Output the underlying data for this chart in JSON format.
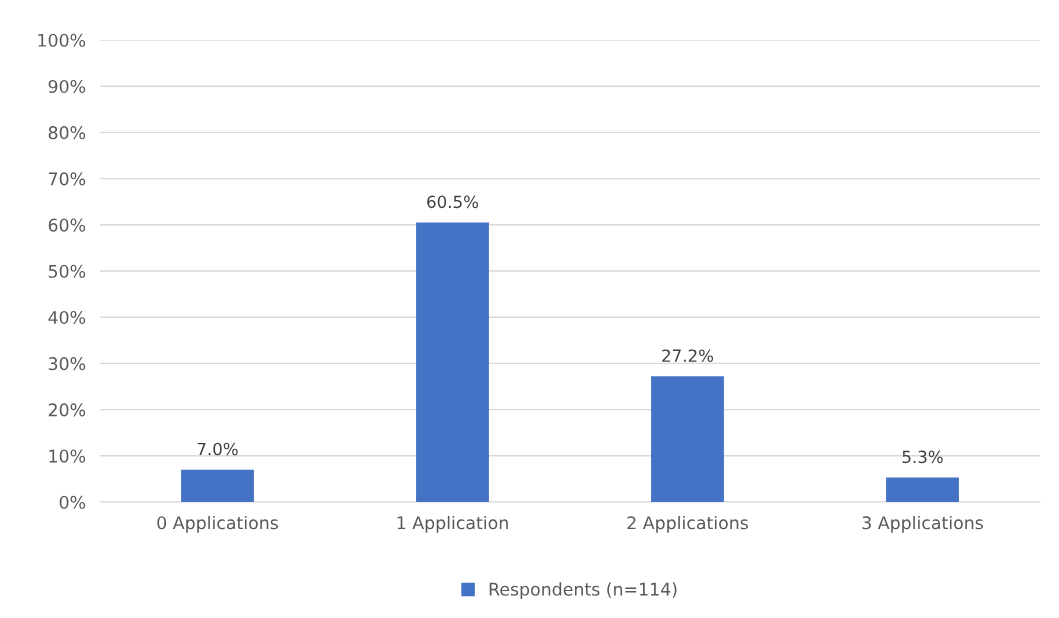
{
  "chart_data": {
    "type": "bar",
    "categories": [
      "0 Applications",
      "1 Application",
      "2 Applications",
      "3 Applications"
    ],
    "series": [
      {
        "name": "Respondents (n=114)",
        "color": "#4472c4",
        "values": [
          7.0,
          60.5,
          27.2,
          5.3
        ],
        "value_labels": [
          "7.0%",
          "60.5%",
          "27.2%",
          "5.3%"
        ]
      }
    ],
    "ylim": [
      0,
      100
    ],
    "yticks": [
      {
        "value": 0,
        "label": "0%"
      },
      {
        "value": 10,
        "label": "10%"
      },
      {
        "value": 20,
        "label": "20%"
      },
      {
        "value": 30,
        "label": "30%"
      },
      {
        "value": 40,
        "label": "40%"
      },
      {
        "value": 50,
        "label": "50%"
      },
      {
        "value": 60,
        "label": "60%"
      },
      {
        "value": 70,
        "label": "70%"
      },
      {
        "value": 80,
        "label": "80%"
      },
      {
        "value": 90,
        "label": "90%"
      },
      {
        "value": 100,
        "label": "100%"
      }
    ],
    "grid": "y",
    "legend": "bottom"
  }
}
